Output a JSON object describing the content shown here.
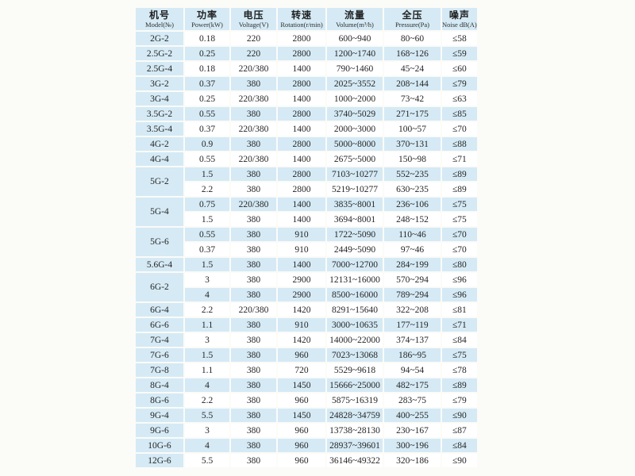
{
  "colors": {
    "cell_blue": "#d5eaf5",
    "row_white": "#ffffff",
    "page_background": "#fbfbf8",
    "text": "#262626"
  },
  "table": {
    "columns": [
      {
        "key": "model",
        "zh": "机号",
        "en": "Model(№)"
      },
      {
        "key": "power",
        "zh": "功率",
        "en": "Power(kW)"
      },
      {
        "key": "voltage",
        "zh": "电压",
        "en": "Voltage(V)"
      },
      {
        "key": "rotation",
        "zh": "转速",
        "en": "Rotation(r/min)"
      },
      {
        "key": "volume",
        "zh": "流量",
        "en": "Volume(m³/h)"
      },
      {
        "key": "pressure",
        "zh": "全压",
        "en": "Pressure(Pa)"
      },
      {
        "key": "noise",
        "zh": "噪声",
        "en": "Noise dB(A)"
      }
    ],
    "rows": [
      {
        "model": "2G-2",
        "rowspan": 1,
        "values": [
          "0.18",
          "220",
          "2800",
          "600~940",
          "80~60",
          "≤58"
        ]
      },
      {
        "model": "2.5G-2",
        "rowspan": 1,
        "values": [
          "0.25",
          "220",
          "2800",
          "1200~1740",
          "168~126",
          "≤59"
        ]
      },
      {
        "model": "2.5G-4",
        "rowspan": 1,
        "values": [
          "0.18",
          "220/380",
          "1400",
          "790~1460",
          "45~24",
          "≤60"
        ]
      },
      {
        "model": "3G-2",
        "rowspan": 1,
        "values": [
          "0.37",
          "380",
          "2800",
          "2025~3552",
          "208~144",
          "≤79"
        ]
      },
      {
        "model": "3G-4",
        "rowspan": 1,
        "values": [
          "0.25",
          "220/380",
          "1400",
          "1000~2000",
          "73~42",
          "≤63"
        ]
      },
      {
        "model": "3.5G-2",
        "rowspan": 1,
        "values": [
          "0.55",
          "380",
          "2800",
          "3740~5029",
          "271~175",
          "≤85"
        ]
      },
      {
        "model": "3.5G-4",
        "rowspan": 1,
        "values": [
          "0.37",
          "220/380",
          "1400",
          "2000~3000",
          "100~57",
          "≤70"
        ]
      },
      {
        "model": "4G-2",
        "rowspan": 1,
        "values": [
          "0.9",
          "380",
          "2800",
          "5000~8000",
          "370~131",
          "≤88"
        ]
      },
      {
        "model": "4G-4",
        "rowspan": 1,
        "values": [
          "0.55",
          "220/380",
          "1400",
          "2675~5000",
          "150~98",
          "≤71"
        ]
      },
      {
        "model": "5G-2",
        "rowspan": 2,
        "values": [
          "1.5",
          "380",
          "2800",
          "7103~10277",
          "552~235",
          "≤89"
        ]
      },
      {
        "model": null,
        "values": [
          "2.2",
          "380",
          "2800",
          "5219~10277",
          "630~235",
          "≤89"
        ]
      },
      {
        "model": "5G-4",
        "rowspan": 2,
        "values": [
          "0.75",
          "220/380",
          "1400",
          "3835~8001",
          "236~106",
          "≤75"
        ]
      },
      {
        "model": null,
        "values": [
          "1.5",
          "380",
          "1400",
          "3694~8001",
          "248~152",
          "≤75"
        ]
      },
      {
        "model": "5G-6",
        "rowspan": 2,
        "values": [
          "0.55",
          "380",
          "910",
          "1722~5090",
          "110~46",
          "≤70"
        ]
      },
      {
        "model": null,
        "values": [
          "0.37",
          "380",
          "910",
          "2449~5090",
          "97~46",
          "≤70"
        ]
      },
      {
        "model": "5.6G-4",
        "rowspan": 1,
        "values": [
          "1.5",
          "380",
          "1400",
          "7000~12700",
          "284~199",
          "≤80"
        ]
      },
      {
        "model": "6G-2",
        "rowspan": 2,
        "values": [
          "3",
          "380",
          "2900",
          "12131~16000",
          "570~294",
          "≤96"
        ]
      },
      {
        "model": null,
        "values": [
          "4",
          "380",
          "2900",
          "8500~16000",
          "789~294",
          "≤96"
        ]
      },
      {
        "model": "6G-4",
        "rowspan": 1,
        "values": [
          "2.2",
          "220/380",
          "1420",
          "8291~15640",
          "322~208",
          "≤81"
        ]
      },
      {
        "model": "6G-6",
        "rowspan": 1,
        "values": [
          "1.1",
          "380",
          "910",
          "3000~10635",
          "177~119",
          "≤71"
        ]
      },
      {
        "model": "7G-4",
        "rowspan": 1,
        "values": [
          "3",
          "380",
          "1420",
          "14000~22000",
          "374~137",
          "≤84"
        ]
      },
      {
        "model": "7G-6",
        "rowspan": 1,
        "values": [
          "1.5",
          "380",
          "960",
          "7023~13068",
          "186~95",
          "≤75"
        ]
      },
      {
        "model": "7G-8",
        "rowspan": 1,
        "values": [
          "1.1",
          "380",
          "720",
          "5529~9618",
          "94~54",
          "≤78"
        ]
      },
      {
        "model": "8G-4",
        "rowspan": 1,
        "values": [
          "4",
          "380",
          "1450",
          "15666~25000",
          "482~175",
          "≤89"
        ]
      },
      {
        "model": "8G-6",
        "rowspan": 1,
        "values": [
          "2.2",
          "380",
          "960",
          "5875~16319",
          "283~75",
          "≤79"
        ]
      },
      {
        "model": "9G-4",
        "rowspan": 1,
        "values": [
          "5.5",
          "380",
          "1450",
          "24828~34759",
          "400~255",
          "≤90"
        ]
      },
      {
        "model": "9G-6",
        "rowspan": 1,
        "values": [
          "3",
          "380",
          "960",
          "13738~28130",
          "230~167",
          "≤87"
        ]
      },
      {
        "model": "10G-6",
        "rowspan": 1,
        "values": [
          "4",
          "380",
          "960",
          "28937~39601",
          "300~196",
          "≤84"
        ]
      },
      {
        "model": "12G-6",
        "rowspan": 1,
        "values": [
          "5.5",
          "380",
          "960",
          "36146~49322",
          "320~186",
          "≤90"
        ]
      }
    ]
  }
}
